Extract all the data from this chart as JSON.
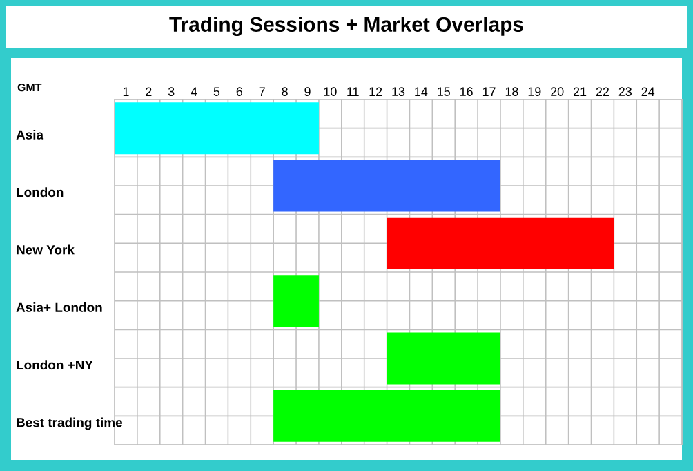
{
  "chart_data": {
    "type": "bar",
    "orientation": "horizontal",
    "title": "Trading Sessions + Market Overlaps",
    "xlabel": "GMT",
    "categories": [
      "Asia",
      "London",
      "New York",
      "Asia+ London",
      "London +NY",
      "Best trading time"
    ],
    "base": [
      0,
      7,
      12,
      7,
      12,
      7
    ],
    "values": [
      9,
      10,
      10,
      2,
      5,
      10
    ],
    "colors": [
      "#00ffff",
      "#3366ff",
      "#ff0000",
      "#00ff00",
      "#00ff00",
      "#00ff00"
    ],
    "xlim": [
      0,
      25
    ],
    "xticks": [
      {
        "value": 0.5,
        "label": "1"
      },
      {
        "value": 1.5,
        "label": "2"
      },
      {
        "value": 2.5,
        "label": "3"
      },
      {
        "value": 3.5,
        "label": "4"
      },
      {
        "value": 4.5,
        "label": "5"
      },
      {
        "value": 5.5,
        "label": "6"
      },
      {
        "value": 6.5,
        "label": "7"
      },
      {
        "value": 7.5,
        "label": "8"
      },
      {
        "value": 8.5,
        "label": "9"
      },
      {
        "value": 9.5,
        "label": "10"
      },
      {
        "value": 10.5,
        "label": "11"
      },
      {
        "value": 11.5,
        "label": "12"
      },
      {
        "value": 12.5,
        "label": "13"
      },
      {
        "value": 13.5,
        "label": "14"
      },
      {
        "value": 14.5,
        "label": "15"
      },
      {
        "value": 15.5,
        "label": "16"
      },
      {
        "value": 16.5,
        "label": "17"
      },
      {
        "value": 17.5,
        "label": "18"
      },
      {
        "value": 18.5,
        "label": "19"
      },
      {
        "value": 19.5,
        "label": "20"
      },
      {
        "value": 20.5,
        "label": "21"
      },
      {
        "value": 21.5,
        "label": "22"
      },
      {
        "value": 22.5,
        "label": "23"
      },
      {
        "value": 23.5,
        "label": "24"
      }
    ],
    "grid": true
  }
}
